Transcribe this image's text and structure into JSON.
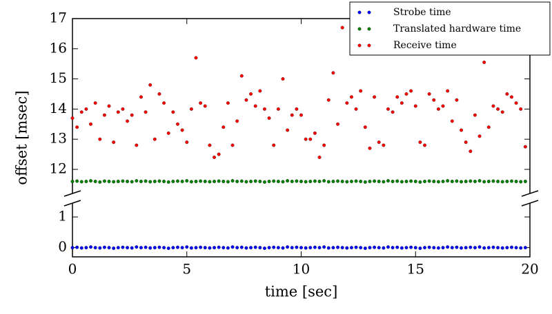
{
  "chart_data": {
    "type": "scatter",
    "xlabel": "time [sec]",
    "ylabel": "offset [msec]",
    "xlim": [
      0,
      20
    ],
    "xticks": [
      0,
      5,
      10,
      15,
      20
    ],
    "axes": [
      {
        "ylim": [
          11.2,
          17
        ],
        "yticks": [
          12,
          13,
          14,
          15,
          16,
          17
        ]
      },
      {
        "ylim": [
          -0.3,
          1.45
        ],
        "yticks": [
          0,
          1
        ]
      }
    ],
    "legend": "upper right",
    "x": [
      0,
      0.2,
      0.4,
      0.6,
      0.8,
      1,
      1.2,
      1.4,
      1.6,
      1.8,
      2,
      2.2,
      2.4,
      2.6,
      2.8,
      3,
      3.2,
      3.4,
      3.6,
      3.8,
      4,
      4.2,
      4.4,
      4.6,
      4.8,
      5,
      5.2,
      5.4,
      5.6,
      5.8,
      6,
      6.2,
      6.4,
      6.6,
      6.8,
      7,
      7.2,
      7.4,
      7.6,
      7.8,
      8,
      8.2,
      8.4,
      8.6,
      8.8,
      9,
      9.2,
      9.4,
      9.6,
      9.8,
      10,
      10.2,
      10.4,
      10.6,
      10.8,
      11,
      11.2,
      11.4,
      11.6,
      11.8,
      12,
      12.2,
      12.4,
      12.6,
      12.8,
      13,
      13.2,
      13.4,
      13.6,
      13.8,
      14,
      14.2,
      14.4,
      14.6,
      14.8,
      15,
      15.2,
      15.4,
      15.6,
      15.8,
      16,
      16.2,
      16.4,
      16.6,
      16.8,
      17,
      17.2,
      17.4,
      17.6,
      17.8,
      18,
      18.2,
      18.4,
      18.6,
      18.8,
      19,
      19.2,
      19.4,
      19.6,
      19.8
    ],
    "series": [
      {
        "name": "Strobe time",
        "color": "#0000ff",
        "axis": 1,
        "values": [
          0,
          0.01,
          -0.01,
          0,
          0.02,
          0,
          -0.01,
          0.01,
          0,
          -0.02,
          0,
          0.01,
          0,
          -0.01,
          0.02,
          0,
          0.01,
          -0.01,
          0,
          0.01,
          0,
          -0.02,
          0,
          0.01,
          0,
          0.02,
          -0.01,
          0,
          0.01,
          0,
          -0.01,
          0,
          0.01,
          0,
          -0.01,
          0.02,
          0,
          0.01,
          -0.01,
          0,
          0.01,
          0,
          -0.02,
          0,
          0.01,
          0,
          -0.01,
          0.02,
          0,
          0.01,
          0,
          -0.01,
          0,
          0.01,
          0,
          0.02,
          -0.01,
          0,
          0.01,
          0,
          -0.01,
          0,
          0.01,
          0,
          -0.02,
          0,
          0.01,
          0,
          -0.01,
          0.02,
          0,
          0.01,
          -0.01,
          0,
          0.01,
          0,
          -0.02,
          0,
          0.01,
          0,
          -0.01,
          0,
          0.02,
          0,
          0.01,
          -0.01,
          0,
          0.01,
          0,
          0.02,
          -0.01,
          0,
          0.01,
          0,
          -0.01,
          0,
          0.01,
          0,
          -0.01,
          0
        ]
      },
      {
        "name": "Translated hardware time",
        "color": "#008000",
        "axis": 0,
        "values": [
          11.6,
          11.61,
          11.59,
          11.6,
          11.62,
          11.6,
          11.58,
          11.61,
          11.6,
          11.59,
          11.6,
          11.61,
          11.6,
          11.59,
          11.62,
          11.6,
          11.61,
          11.59,
          11.6,
          11.61,
          11.6,
          11.58,
          11.6,
          11.61,
          11.6,
          11.62,
          11.59,
          11.6,
          11.61,
          11.6,
          11.59,
          11.6,
          11.61,
          11.6,
          11.59,
          11.62,
          11.6,
          11.61,
          11.59,
          11.6,
          11.61,
          11.6,
          11.58,
          11.6,
          11.61,
          11.6,
          11.59,
          11.62,
          11.6,
          11.61,
          11.6,
          11.59,
          11.6,
          11.61,
          11.6,
          11.62,
          11.59,
          11.6,
          11.61,
          11.6,
          11.59,
          11.6,
          11.61,
          11.6,
          11.58,
          11.6,
          11.61,
          11.6,
          11.59,
          11.62,
          11.6,
          11.61,
          11.59,
          11.6,
          11.61,
          11.6,
          11.58,
          11.6,
          11.61,
          11.6,
          11.59,
          11.6,
          11.62,
          11.6,
          11.61,
          11.59,
          11.6,
          11.61,
          11.6,
          11.62,
          11.59,
          11.6,
          11.61,
          11.6,
          11.59,
          11.6,
          11.61,
          11.6,
          11.59,
          11.6
        ]
      },
      {
        "name": "Receive time",
        "color": "#ff0000",
        "axis": 0,
        "values": [
          13.7,
          13.4,
          13.9,
          14.0,
          13.5,
          14.2,
          13.0,
          13.8,
          14.1,
          12.9,
          13.9,
          14.0,
          13.6,
          13.8,
          12.8,
          14.4,
          13.9,
          14.8,
          13.0,
          14.5,
          14.2,
          13.2,
          13.9,
          13.5,
          13.3,
          12.9,
          14.0,
          15.7,
          14.2,
          14.1,
          12.8,
          12.4,
          12.5,
          13.4,
          14.2,
          12.8,
          13.6,
          15.1,
          14.3,
          14.5,
          14.1,
          14.6,
          14.0,
          13.7,
          12.8,
          14.0,
          15.0,
          13.3,
          13.8,
          14.0,
          13.8,
          13.0,
          13.0,
          13.2,
          12.4,
          12.8,
          14.3,
          15.2,
          13.5,
          16.7,
          14.2,
          14.4,
          14.0,
          14.6,
          13.4,
          12.7,
          14.4,
          12.9,
          12.8,
          14.0,
          13.9,
          14.4,
          14.2,
          14.5,
          14.6,
          14.1,
          12.9,
          12.8,
          14.5,
          14.3,
          14.0,
          14.1,
          14.6,
          13.6,
          14.3,
          13.3,
          12.9,
          12.6,
          13.8,
          13.1,
          15.55,
          13.4,
          14.1,
          14.0,
          13.9,
          14.5,
          14.4,
          14.2,
          14.0,
          12.75
        ]
      }
    ]
  }
}
